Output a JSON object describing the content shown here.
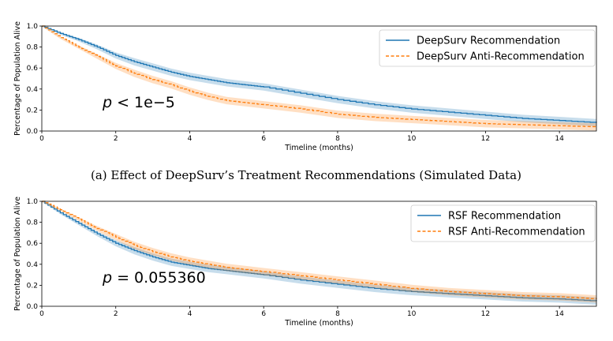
{
  "colors": {
    "blue": "#1f77b4",
    "orange": "#ff7f0e",
    "blue_band": "#1f77b4",
    "orange_band": "#ff7f0e"
  },
  "chart_data": [
    {
      "type": "line",
      "caption": "(a) Effect of DeepSurv’s Treatment Recommendations (Simulated Data)",
      "annotation": "p < 1e−5",
      "xlabel": "Timeline (months)",
      "ylabel": "Percentage of Population Alive",
      "xlim": [
        0,
        15
      ],
      "ylim": [
        0,
        1.0
      ],
      "xticks": [
        "0",
        "2",
        "4",
        "6",
        "8",
        "10",
        "12",
        "14"
      ],
      "yticks": [
        "0.0",
        "0.2",
        "0.4",
        "0.6",
        "0.8",
        "1.0"
      ],
      "legend_position": "top-right",
      "series": [
        {
          "name": "DeepSurv Recommendation",
          "style": "solid",
          "color": "#1f77b4",
          "x": [
            0,
            0.5,
            1,
            1.5,
            2,
            2.5,
            3,
            3.5,
            4,
            4.5,
            5,
            5.5,
            6,
            7,
            8,
            9,
            10,
            11,
            12,
            13,
            14,
            15
          ],
          "y": [
            1.0,
            0.93,
            0.87,
            0.8,
            0.72,
            0.66,
            0.61,
            0.56,
            0.52,
            0.49,
            0.46,
            0.44,
            0.42,
            0.36,
            0.3,
            0.25,
            0.21,
            0.18,
            0.15,
            0.12,
            0.1,
            0.08
          ]
        },
        {
          "name": "DeepSurv Anti-Recommendation",
          "style": "dashed",
          "color": "#ff7f0e",
          "x": [
            0,
            0.5,
            1,
            1.5,
            2,
            2.5,
            3,
            3.5,
            4,
            4.5,
            5,
            5.5,
            6,
            7,
            8,
            9,
            10,
            11,
            12,
            13,
            14,
            15
          ],
          "y": [
            1.0,
            0.89,
            0.8,
            0.71,
            0.62,
            0.55,
            0.49,
            0.44,
            0.38,
            0.33,
            0.29,
            0.27,
            0.25,
            0.21,
            0.16,
            0.13,
            0.11,
            0.09,
            0.07,
            0.06,
            0.05,
            0.04
          ]
        }
      ]
    },
    {
      "type": "line",
      "caption": "",
      "annotation": "p = 0.055360",
      "xlabel": "Timeline (months)",
      "ylabel": "Percentage of Population Alive",
      "xlim": [
        0,
        15
      ],
      "ylim": [
        0,
        1.0
      ],
      "xticks": [
        "0",
        "2",
        "4",
        "6",
        "8",
        "10",
        "12",
        "14"
      ],
      "yticks": [
        "0.0",
        "0.2",
        "0.4",
        "0.6",
        "0.8",
        "1.0"
      ],
      "legend_position": "top-right",
      "series": [
        {
          "name": "RSF Recommendation",
          "style": "solid",
          "color": "#1f77b4",
          "x": [
            0,
            0.5,
            1,
            1.5,
            2,
            2.5,
            3,
            3.5,
            4,
            4.5,
            5,
            5.5,
            6,
            7,
            8,
            9,
            10,
            11,
            12,
            13,
            14,
            15
          ],
          "y": [
            1.0,
            0.89,
            0.79,
            0.69,
            0.6,
            0.53,
            0.47,
            0.42,
            0.39,
            0.36,
            0.34,
            0.32,
            0.3,
            0.25,
            0.21,
            0.17,
            0.14,
            0.12,
            0.1,
            0.08,
            0.07,
            0.05
          ]
        },
        {
          "name": "RSF Anti-Recommendation",
          "style": "dashed",
          "color": "#ff7f0e",
          "x": [
            0,
            0.5,
            1,
            1.5,
            2,
            2.5,
            3,
            3.5,
            4,
            4.5,
            5,
            5.5,
            6,
            7,
            8,
            9,
            10,
            11,
            12,
            13,
            14,
            15
          ],
          "y": [
            1.0,
            0.92,
            0.83,
            0.74,
            0.66,
            0.58,
            0.52,
            0.47,
            0.43,
            0.4,
            0.37,
            0.35,
            0.33,
            0.29,
            0.25,
            0.21,
            0.17,
            0.14,
            0.12,
            0.1,
            0.09,
            0.07
          ]
        }
      ]
    }
  ]
}
